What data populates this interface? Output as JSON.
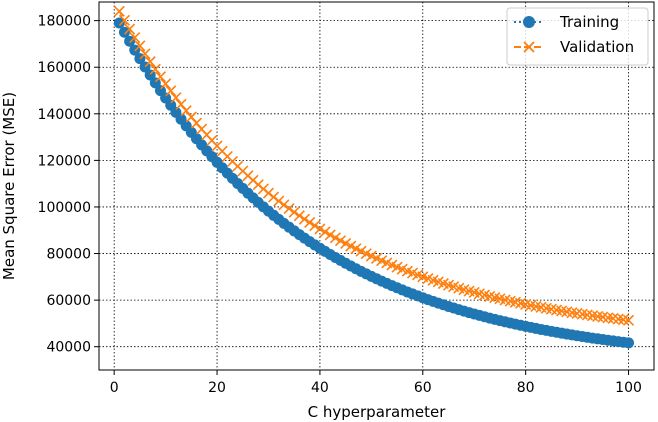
{
  "chart_data": {
    "type": "line",
    "title": "",
    "xlabel": "C hyperparameter",
    "ylabel": "Mean Square Error (MSE)",
    "xlim": [
      -2.95,
      104.95
    ],
    "ylim": [
      30000,
      188000
    ],
    "xticks": [
      0,
      20,
      40,
      60,
      80,
      100
    ],
    "yticks": [
      40000,
      60000,
      80000,
      100000,
      120000,
      140000,
      160000,
      180000
    ],
    "grid": true,
    "legend_position": "top-right",
    "x_range": {
      "start": 1,
      "end": 100,
      "step": 1
    },
    "series": [
      {
        "name": "Training",
        "color": "#1f77b4",
        "marker": "circle",
        "linestyle": "dotted",
        "model": "exponential_decay",
        "asymptote": 32000,
        "start_value": 179000,
        "decay_rate": 0.0275
      },
      {
        "name": "Validation",
        "color": "#ff7f0e",
        "marker": "x",
        "linestyle": "dashed",
        "model": "exponential_decay",
        "asymptote": 42000,
        "start_value": 184000,
        "decay_rate": 0.0275
      }
    ]
  }
}
